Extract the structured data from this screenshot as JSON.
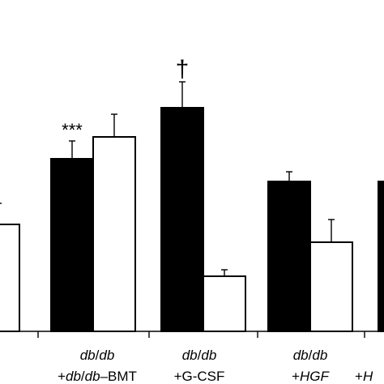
{
  "chart_data": {
    "type": "bar",
    "title": "",
    "xlabel": "",
    "ylabel": "",
    "ylim": [
      0,
      330
    ],
    "categories": [
      {
        "line1": "",
        "line1_italic": [],
        "line2": "",
        "line2_italic": []
      },
      {
        "line1": "db/db",
        "line1_italic": [
          "db",
          "db"
        ],
        "line2": "+db/db–BMT",
        "line2_italic": [
          "db",
          "db"
        ]
      },
      {
        "line1": "db/db",
        "line1_italic": [
          "db",
          "db"
        ],
        "line2": "+G-CSF",
        "line2_italic": []
      },
      {
        "line1": "db/db",
        "line1_italic": [
          "db",
          "db"
        ],
        "line2": "+HGF",
        "line2_italic": [
          "HGF"
        ]
      },
      {
        "line1": "",
        "line1_italic": [],
        "line2": "+H",
        "line2_italic": [
          "H"
        ]
      }
    ],
    "series": [
      {
        "color": "#000000",
        "values": [
          null,
          213,
          276,
          185,
          185
        ],
        "errors": [
          null,
          22,
          32,
          12,
          null
        ]
      },
      {
        "color": "#ffffff",
        "values": [
          132,
          240,
          68,
          110,
          null
        ],
        "errors": [
          26,
          28,
          8,
          28,
          null
        ]
      }
    ],
    "annotations": [
      {
        "category_index": 1,
        "series_index": 0,
        "text": "***"
      },
      {
        "category_index": 2,
        "series_index": 0,
        "text": "†"
      }
    ],
    "grid": false,
    "legend": "none"
  }
}
